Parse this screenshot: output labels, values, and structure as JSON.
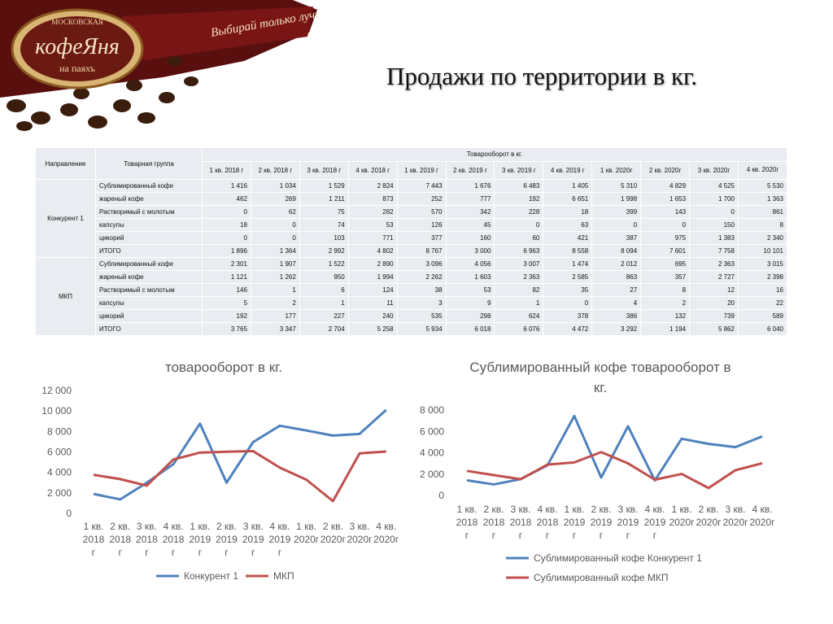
{
  "logo": {
    "top_text": "МОСКОВСКАЯ",
    "brand": "кофеЯня",
    "sub": "на паяхъ",
    "slogan": "Выбирай только лучшее!"
  },
  "title": "Продажи по территории в кг.",
  "table": {
    "col_direction": "Направление",
    "col_group": "Товарная группа",
    "col_turnover": "Товарооборот в кг.",
    "quarters": [
      "1 кв. 2018 г",
      "2 кв. 2018 г",
      "3 кв. 2018 г",
      "4 кв. 2018 г",
      "1 кв. 2019 г",
      "2 кв. 2019 г",
      "3 кв. 2019 г",
      "4 кв. 2019 г",
      "1 кв. 2020г",
      "2 кв. 2020г",
      "3 кв. 2020г",
      "4 кв. 2020г"
    ],
    "groups": [
      {
        "name": "Конкурент 1",
        "rows": [
          {
            "label": "Сублимированный кофе",
            "values": [
              "1 416",
              "1 034",
              "1 529",
              "2 824",
              "7 443",
              "1 676",
              "6 483",
              "1 405",
              "5 310",
              "4 829",
              "4 525",
              "5 530"
            ]
          },
          {
            "label": "жареный кофе",
            "values": [
              "462",
              "269",
              "1 211",
              "873",
              "252",
              "777",
              "192",
              "6 651",
              "1 998",
              "1 653",
              "1 700",
              "1 363"
            ]
          },
          {
            "label": "Растворимый с молотым",
            "values": [
              "0",
              "62",
              "75",
              "282",
              "570",
              "342",
              "228",
              "18",
              "399",
              "143",
              "0",
              "861"
            ]
          },
          {
            "label": "капсулы",
            "values": [
              "18",
              "0",
              "74",
              "53",
              "126",
              "45",
              "0",
              "63",
              "0",
              "0",
              "150",
              "8"
            ]
          },
          {
            "label": "цикорий",
            "values": [
              "0",
              "0",
              "103",
              "771",
              "377",
              "160",
              "60",
              "421",
              "387",
              "975",
              "1 383",
              "2 340"
            ]
          },
          {
            "label": "ИТОГО",
            "values": [
              "1 896",
              "1 364",
              "2 992",
              "4 802",
              "8 767",
              "3 000",
              "6 963",
              "8 558",
              "8 094",
              "7 601",
              "7 758",
              "10 101"
            ]
          }
        ]
      },
      {
        "name": "МКП",
        "rows": [
          {
            "label": "Сублимированный кофе",
            "values": [
              "2 301",
              "1 907",
              "1 522",
              "2 890",
              "3 096",
              "4 056",
              "3 007",
              "1 474",
              "2 012",
              "695",
              "2 363",
              "3 015"
            ]
          },
          {
            "label": "жареный кофе",
            "values": [
              "1 121",
              "1 262",
              "950",
              "1 994",
              "2 262",
              "1 603",
              "2 363",
              "2 585",
              "863",
              "357",
              "2 727",
              "2 398"
            ]
          },
          {
            "label": "Растворимый с молотым",
            "values": [
              "146",
              "1",
              "6",
              "124",
              "38",
              "53",
              "82",
              "35",
              "27",
              "8",
              "12",
              "16"
            ]
          },
          {
            "label": "капсулы",
            "values": [
              "5",
              "2",
              "1",
              "11",
              "3",
              "9",
              "1",
              "0",
              "4",
              "2",
              "20",
              "22"
            ]
          },
          {
            "label": "цикорий",
            "values": [
              "192",
              "177",
              "227",
              "240",
              "535",
              "298",
              "624",
              "378",
              "386",
              "132",
              "739",
              "589"
            ]
          },
          {
            "label": "ИТОГО",
            "values": [
              "3 765",
              "3 347",
              "2 704",
              "5 258",
              "5 934",
              "6 018",
              "6 076",
              "4 472",
              "3 292",
              "1 194",
              "5 862",
              "6 040"
            ]
          }
        ]
      }
    ]
  },
  "chart_data": [
    {
      "type": "line",
      "title": "товарооборот в кг.",
      "ylim": [
        0,
        12000
      ],
      "yticks": [
        "0",
        "2 000",
        "4 000",
        "6 000",
        "8 000",
        "10 000",
        "12 000"
      ],
      "categories": [
        [
          "1 кв.",
          "2018",
          "г"
        ],
        [
          "2 кв.",
          "2018",
          "г"
        ],
        [
          "3 кв.",
          "2018",
          "г"
        ],
        [
          "4 кв.",
          "2018",
          "г"
        ],
        [
          "1 кв.",
          "2019",
          "г"
        ],
        [
          "2 кв.",
          "2019",
          "г"
        ],
        [
          "3 кв.",
          "2019",
          "г"
        ],
        [
          "4 кв.",
          "2019",
          "г"
        ],
        [
          "1 кв.",
          "2020г"
        ],
        [
          "2 кв.",
          "2020г"
        ],
        [
          "3 кв.",
          "2020г"
        ],
        [
          "4 кв.",
          "2020г"
        ]
      ],
      "legend": "bottom",
      "series": [
        {
          "name": "Конкурент 1",
          "color": "#4f81bd",
          "values": [
            1896,
            1364,
            2992,
            4802,
            8767,
            3000,
            6963,
            8558,
            8094,
            7601,
            7758,
            10101
          ]
        },
        {
          "name": "МКП",
          "color": "#c0504d",
          "values": [
            3765,
            3347,
            2704,
            5258,
            5934,
            6018,
            6076,
            4472,
            3292,
            1194,
            5862,
            6040
          ]
        }
      ]
    },
    {
      "type": "line",
      "title": "Сублимированный кофе товарооборот в кг.",
      "title_lines": [
        "Сублимированный кофе товарооборот в",
        "кг."
      ],
      "ylim": [
        0,
        8000
      ],
      "yticks": [
        "0",
        "2 000",
        "4 000",
        "6 000",
        "8 000"
      ],
      "categories": [
        [
          "1 кв.",
          "2018",
          "г"
        ],
        [
          "2 кв.",
          "2018",
          "г"
        ],
        [
          "3 кв.",
          "2018",
          "г"
        ],
        [
          "4 кв.",
          "2018",
          "г"
        ],
        [
          "1 кв.",
          "2019",
          "г"
        ],
        [
          "2 кв.",
          "2019",
          "г"
        ],
        [
          "3 кв.",
          "2019",
          "г"
        ],
        [
          "4 кв.",
          "2019",
          "г"
        ],
        [
          "1 кв.",
          "2020г"
        ],
        [
          "2 кв.",
          "2020г"
        ],
        [
          "3 кв.",
          "2020г"
        ],
        [
          "4 кв.",
          "2020г"
        ]
      ],
      "legend": "bottom",
      "series": [
        {
          "name": "Сублимированный кофе Конкурент 1",
          "color": "#4f81bd",
          "values": [
            1416,
            1034,
            1529,
            2824,
            7443,
            1676,
            6483,
            1405,
            5310,
            4829,
            4525,
            5530
          ]
        },
        {
          "name": "Сублимированный кофе МКП",
          "color": "#c0504d",
          "values": [
            2301,
            1907,
            1522,
            2890,
            3096,
            4056,
            3007,
            1474,
            2012,
            695,
            2363,
            3015
          ]
        }
      ]
    }
  ]
}
